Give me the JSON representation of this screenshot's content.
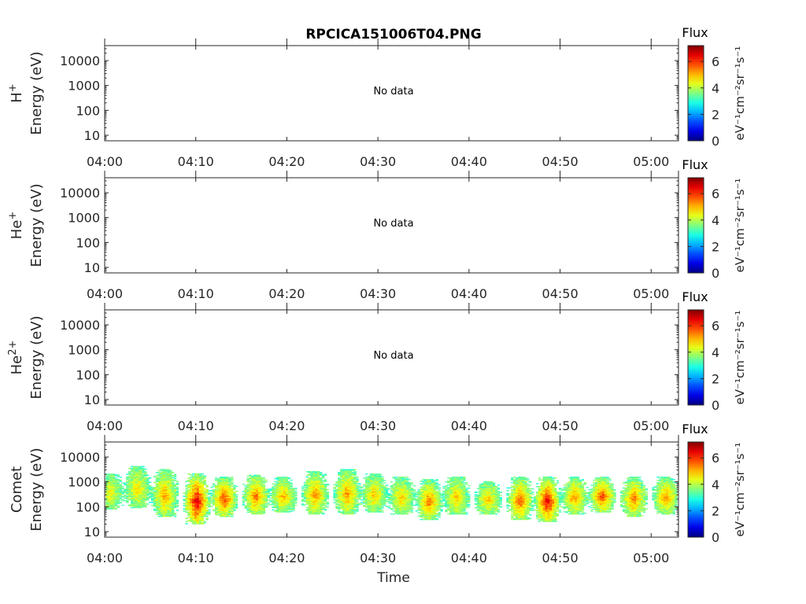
{
  "figure": {
    "title": "RPCICA151006T04.PNG",
    "xlabel": "Time",
    "colorbar": {
      "title": "Flux",
      "label": "eV⁻¹cm⁻²sr⁻¹s⁻¹",
      "ticks": [
        "0",
        "2",
        "4",
        "6"
      ],
      "range": [
        0,
        7.2
      ],
      "colormap": "jet"
    }
  },
  "chart_data": [
    {
      "type": "heatmap",
      "panel": "H+",
      "ylabel_species": "H",
      "ylabel_charge": "+",
      "ylabel": "Energy (eV)",
      "yscale": "log",
      "ylim": [
        6,
        40000
      ],
      "yticks": [
        "10",
        "100",
        "1000",
        "10000"
      ],
      "xlim": [
        "04:00",
        "05:03"
      ],
      "xticks": [
        "04:00",
        "04:10",
        "04:20",
        "04:30",
        "04:40",
        "04:50",
        "05:00"
      ],
      "annotation": "No data",
      "values": []
    },
    {
      "type": "heatmap",
      "panel": "He+",
      "ylabel_species": "He",
      "ylabel_charge": "+",
      "ylabel": "Energy (eV)",
      "yscale": "log",
      "ylim": [
        6,
        40000
      ],
      "yticks": [
        "10",
        "100",
        "1000",
        "10000"
      ],
      "xlim": [
        "04:00",
        "05:03"
      ],
      "xticks": [
        "04:00",
        "04:10",
        "04:20",
        "04:30",
        "04:40",
        "04:50",
        "05:00"
      ],
      "annotation": "No data",
      "values": []
    },
    {
      "type": "heatmap",
      "panel": "He2+",
      "ylabel_species": "He",
      "ylabel_charge": "2+",
      "ylabel": "Energy (eV)",
      "yscale": "log",
      "ylim": [
        6,
        40000
      ],
      "yticks": [
        "10",
        "100",
        "1000",
        "10000"
      ],
      "xlim": [
        "04:00",
        "05:03"
      ],
      "xticks": [
        "04:00",
        "04:10",
        "04:20",
        "04:30",
        "04:40",
        "04:50",
        "05:00"
      ],
      "annotation": "No data",
      "values": []
    },
    {
      "type": "heatmap",
      "panel": "Comet",
      "ylabel_species": "Comet",
      "ylabel_charge": "",
      "ylabel": "Energy (eV)",
      "yscale": "log",
      "ylim": [
        6,
        40000
      ],
      "yticks": [
        "10",
        "100",
        "1000",
        "10000"
      ],
      "xlim": [
        "04:00",
        "05:03"
      ],
      "xticks": [
        "04:00",
        "04:10",
        "04:20",
        "04:30",
        "04:40",
        "04:50",
        "05:00"
      ],
      "annotation": "",
      "bursts": [
        {
          "t": "04:00.5",
          "lo": 80,
          "hi": 2000,
          "peak": 4.6
        },
        {
          "t": "04:03.5",
          "lo": 90,
          "hi": 4000,
          "peak": 4.8
        },
        {
          "t": "04:06.5",
          "lo": 40,
          "hi": 3000,
          "peak": 5.2
        },
        {
          "t": "04:10.0",
          "lo": 20,
          "hi": 2000,
          "peak": 6.8
        },
        {
          "t": "04:13.0",
          "lo": 40,
          "hi": 1500,
          "peak": 6.0
        },
        {
          "t": "04:16.5",
          "lo": 50,
          "hi": 1800,
          "peak": 5.6
        },
        {
          "t": "04:19.5",
          "lo": 60,
          "hi": 1500,
          "peak": 5.2
        },
        {
          "t": "04:23.0",
          "lo": 50,
          "hi": 2500,
          "peak": 5.4
        },
        {
          "t": "04:26.5",
          "lo": 50,
          "hi": 3000,
          "peak": 5.4
        },
        {
          "t": "04:29.5",
          "lo": 60,
          "hi": 2000,
          "peak": 5.0
        },
        {
          "t": "04:32.5",
          "lo": 50,
          "hi": 1500,
          "peak": 5.0
        },
        {
          "t": "04:35.5",
          "lo": 30,
          "hi": 1200,
          "peak": 5.6
        },
        {
          "t": "04:38.5",
          "lo": 50,
          "hi": 1500,
          "peak": 5.0
        },
        {
          "t": "04:42.0",
          "lo": 50,
          "hi": 1000,
          "peak": 5.0
        },
        {
          "t": "04:45.5",
          "lo": 30,
          "hi": 1500,
          "peak": 5.8
        },
        {
          "t": "04:48.5",
          "lo": 25,
          "hi": 1500,
          "peak": 6.6
        },
        {
          "t": "04:51.5",
          "lo": 50,
          "hi": 1500,
          "peak": 5.4
        },
        {
          "t": "04:54.5",
          "lo": 60,
          "hi": 1500,
          "peak": 6.0
        },
        {
          "t": "04:58.0",
          "lo": 40,
          "hi": 1500,
          "peak": 5.6
        },
        {
          "t": "05:01.5",
          "lo": 50,
          "hi": 1500,
          "peak": 5.4
        }
      ]
    }
  ]
}
